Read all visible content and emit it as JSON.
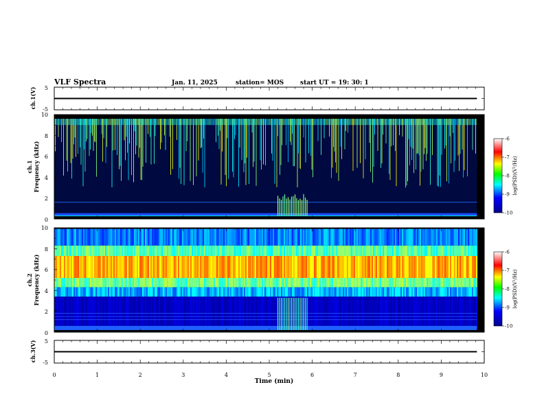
{
  "header": {
    "title": "VLF Spectra",
    "date": "Jan. 11, 2025",
    "station": "station= MOS",
    "start": "start UT =   19: 30: 1"
  },
  "chart_data": [
    {
      "type": "line",
      "panel": "channel-1-voltage",
      "ylabel": "ch.1(V)",
      "ylim": [
        -5,
        5
      ],
      "yticks": [
        "5",
        "-5"
      ],
      "xlim": [
        0,
        10
      ],
      "series": [
        {
          "x": [
            0,
            9.83
          ],
          "y": [
            0,
            0
          ]
        }
      ]
    },
    {
      "type": "heatmap",
      "panel": "channel-1-spectrogram",
      "ylabel": "ch.1",
      "ylabel2": "Frequency (kHz)",
      "ylim": [
        0,
        10
      ],
      "yticks": [
        "0",
        "2",
        "4",
        "6",
        "8",
        "10"
      ],
      "xlim": [
        0,
        10
      ],
      "colorbar": {
        "label": "log(PSD)(V²/Hz)",
        "range": [
          -10,
          -6
        ],
        "ticks": [
          "-6",
          "-7",
          "-8",
          "-9",
          "-10"
        ]
      }
    },
    {
      "type": "heatmap",
      "panel": "channel-2-spectrogram",
      "ylabel": "ch.2",
      "ylabel2": "Frequency (kHz)",
      "ylim": [
        0,
        10
      ],
      "yticks": [
        "0",
        "2",
        "4",
        "6",
        "8",
        "10"
      ],
      "xlim": [
        0,
        10
      ],
      "colorbar": {
        "label": "log(PSD)(V²/Hz)",
        "range": [
          -10,
          -6
        ],
        "ticks": [
          "-6",
          "-7",
          "-8",
          "-9",
          "-10"
        ]
      }
    },
    {
      "type": "line",
      "panel": "channel-3-voltage",
      "ylabel": "ch.3(V)",
      "ylim": [
        -5,
        5
      ],
      "yticks": [
        "5",
        "-5"
      ],
      "xlim": [
        0,
        10
      ],
      "xlabel": "Time (min)",
      "xticks": [
        "0",
        "1",
        "2",
        "3",
        "4",
        "5",
        "6",
        "7",
        "8",
        "9",
        "10"
      ],
      "series": [
        {
          "x": [
            0,
            9.83
          ],
          "y": [
            0,
            0
          ]
        }
      ]
    }
  ]
}
